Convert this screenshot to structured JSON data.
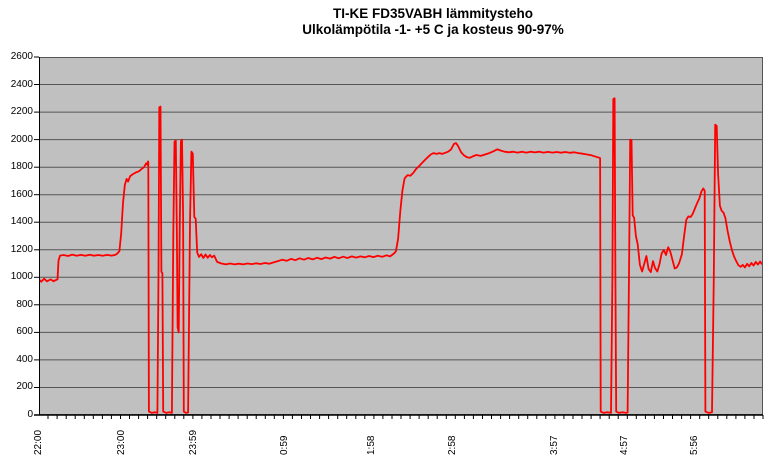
{
  "title": {
    "line1": "TI-KE FD35VABH lämmitysteho",
    "line2": "Ulkolämpötila -1- +5 C ja kosteus 90-97%"
  },
  "colors": {
    "series": "#ff0000",
    "plot_bg": "#c0c0c0",
    "gridline": "#555555",
    "axis": "#000000",
    "page_bg": "#ffffff",
    "text": "#000000"
  },
  "chart_data": {
    "type": "line",
    "title": "TI-KE FD35VABH lämmitysteho",
    "subtitle": "Ulkolämpötila -1- +5 C ja kosteus 90-97%",
    "grid": true,
    "legend_position": "none",
    "ylim": [
      0,
      2600
    ],
    "y_tick_step": 200,
    "y_ticks": [
      0,
      200,
      400,
      600,
      800,
      1000,
      1200,
      1400,
      1600,
      1800,
      2000,
      2200,
      2400,
      2600
    ],
    "x_tick_labels": [
      "22:00",
      "23:00",
      "23:59",
      "0:59",
      "1:58",
      "2:58",
      "3:57",
      "4:57",
      "5:56"
    ],
    "x_tick_positions_pct": [
      0.0,
      11.5,
      21.4,
      34.0,
      46.0,
      57.2,
      71.3,
      80.9,
      90.6
    ],
    "minor_tick_count": 80,
    "series": [
      {
        "color": "#ff0000",
        "points": [
          [
            0,
            985
          ],
          [
            0.3,
            968
          ],
          [
            0.7,
            990
          ],
          [
            1.1,
            970
          ],
          [
            1.6,
            985
          ],
          [
            2.0,
            972
          ],
          [
            2.4,
            982
          ],
          [
            2.55,
            985
          ],
          [
            2.7,
            1120
          ],
          [
            2.9,
            1158
          ],
          [
            3.4,
            1162
          ],
          [
            4.0,
            1155
          ],
          [
            4.6,
            1165
          ],
          [
            5.2,
            1157
          ],
          [
            5.8,
            1163
          ],
          [
            6.4,
            1156
          ],
          [
            7.0,
            1164
          ],
          [
            7.6,
            1157
          ],
          [
            8.2,
            1162
          ],
          [
            8.8,
            1156
          ],
          [
            9.4,
            1163
          ],
          [
            10.0,
            1158
          ],
          [
            10.5,
            1162
          ],
          [
            10.8,
            1172
          ],
          [
            11.1,
            1190
          ],
          [
            11.35,
            1320
          ],
          [
            11.6,
            1540
          ],
          [
            11.85,
            1670
          ],
          [
            12.1,
            1715
          ],
          [
            12.3,
            1695
          ],
          [
            12.6,
            1735
          ],
          [
            13.0,
            1750
          ],
          [
            13.4,
            1762
          ],
          [
            13.8,
            1770
          ],
          [
            14.2,
            1788
          ],
          [
            14.5,
            1800
          ],
          [
            14.8,
            1828
          ],
          [
            15.0,
            1818
          ],
          [
            15.05,
            1842
          ],
          [
            15.1,
            1835
          ],
          [
            15.18,
            25
          ],
          [
            15.6,
            15
          ],
          [
            16.0,
            20
          ],
          [
            16.35,
            15
          ],
          [
            16.5,
            1030
          ],
          [
            16.62,
            2235
          ],
          [
            16.78,
            2240
          ],
          [
            16.9,
            1040
          ],
          [
            17.05,
            1030
          ],
          [
            17.15,
            25
          ],
          [
            17.6,
            15
          ],
          [
            18.0,
            20
          ],
          [
            18.35,
            15
          ],
          [
            18.55,
            1310
          ],
          [
            18.72,
            1985
          ],
          [
            18.9,
            1995
          ],
          [
            19.05,
            1300
          ],
          [
            19.15,
            640
          ],
          [
            19.3,
            600
          ],
          [
            19.45,
            1400
          ],
          [
            19.6,
            1988
          ],
          [
            19.75,
            2000
          ],
          [
            19.9,
            1450
          ],
          [
            20.0,
            25
          ],
          [
            20.3,
            15
          ],
          [
            20.6,
            18
          ],
          [
            20.85,
            1400
          ],
          [
            21.05,
            1912
          ],
          [
            21.25,
            1898
          ],
          [
            21.45,
            1438
          ],
          [
            21.65,
            1425
          ],
          [
            21.85,
            1180
          ],
          [
            22.1,
            1148
          ],
          [
            22.4,
            1168
          ],
          [
            22.7,
            1140
          ],
          [
            23.0,
            1166
          ],
          [
            23.3,
            1142
          ],
          [
            23.6,
            1162
          ],
          [
            23.9,
            1145
          ],
          [
            24.2,
            1158
          ],
          [
            24.6,
            1112
          ],
          [
            25.2,
            1100
          ],
          [
            25.8,
            1094
          ],
          [
            26.4,
            1100
          ],
          [
            27.0,
            1094
          ],
          [
            27.6,
            1099
          ],
          [
            28.2,
            1094
          ],
          [
            28.8,
            1100
          ],
          [
            29.4,
            1096
          ],
          [
            30.0,
            1102
          ],
          [
            30.6,
            1097
          ],
          [
            31.2,
            1104
          ],
          [
            31.8,
            1099
          ],
          [
            32.4,
            1108
          ],
          [
            33.0,
            1118
          ],
          [
            33.6,
            1128
          ],
          [
            34.2,
            1120
          ],
          [
            34.8,
            1134
          ],
          [
            35.4,
            1124
          ],
          [
            36.0,
            1138
          ],
          [
            36.6,
            1128
          ],
          [
            37.2,
            1140
          ],
          [
            37.8,
            1130
          ],
          [
            38.4,
            1142
          ],
          [
            39.0,
            1132
          ],
          [
            39.6,
            1144
          ],
          [
            40.2,
            1136
          ],
          [
            40.8,
            1148
          ],
          [
            41.4,
            1138
          ],
          [
            42.0,
            1150
          ],
          [
            42.6,
            1140
          ],
          [
            43.2,
            1152
          ],
          [
            43.8,
            1143
          ],
          [
            44.4,
            1152
          ],
          [
            45.0,
            1145
          ],
          [
            45.6,
            1155
          ],
          [
            46.2,
            1147
          ],
          [
            46.8,
            1157
          ],
          [
            47.4,
            1149
          ],
          [
            48.0,
            1160
          ],
          [
            48.5,
            1152
          ],
          [
            49.0,
            1172
          ],
          [
            49.3,
            1188
          ],
          [
            49.6,
            1280
          ],
          [
            49.9,
            1480
          ],
          [
            50.2,
            1630
          ],
          [
            50.5,
            1718
          ],
          [
            50.9,
            1742
          ],
          [
            51.3,
            1738
          ],
          [
            51.7,
            1758
          ],
          [
            52.1,
            1788
          ],
          [
            52.5,
            1808
          ],
          [
            52.9,
            1830
          ],
          [
            53.3,
            1852
          ],
          [
            53.7,
            1872
          ],
          [
            54.1,
            1892
          ],
          [
            54.5,
            1902
          ],
          [
            54.9,
            1896
          ],
          [
            55.3,
            1902
          ],
          [
            55.7,
            1896
          ],
          [
            56.1,
            1904
          ],
          [
            56.5,
            1912
          ],
          [
            56.9,
            1928
          ],
          [
            57.3,
            1968
          ],
          [
            57.6,
            1975
          ],
          [
            57.9,
            1952
          ],
          [
            58.3,
            1908
          ],
          [
            58.7,
            1885
          ],
          [
            59.1,
            1872
          ],
          [
            59.5,
            1868
          ],
          [
            59.9,
            1878
          ],
          [
            60.4,
            1888
          ],
          [
            61.0,
            1882
          ],
          [
            61.6,
            1892
          ],
          [
            62.2,
            1902
          ],
          [
            62.8,
            1916
          ],
          [
            63.3,
            1930
          ],
          [
            63.8,
            1920
          ],
          [
            64.3,
            1912
          ],
          [
            64.9,
            1908
          ],
          [
            65.5,
            1912
          ],
          [
            66.1,
            1906
          ],
          [
            66.7,
            1912
          ],
          [
            67.3,
            1906
          ],
          [
            67.9,
            1912
          ],
          [
            68.5,
            1907
          ],
          [
            69.1,
            1912
          ],
          [
            69.7,
            1906
          ],
          [
            70.3,
            1911
          ],
          [
            70.9,
            1906
          ],
          [
            71.5,
            1910
          ],
          [
            72.1,
            1905
          ],
          [
            72.7,
            1910
          ],
          [
            73.3,
            1904
          ],
          [
            73.9,
            1908
          ],
          [
            74.5,
            1902
          ],
          [
            75.1,
            1898
          ],
          [
            75.7,
            1892
          ],
          [
            76.3,
            1886
          ],
          [
            76.9,
            1876
          ],
          [
            77.4,
            1868
          ],
          [
            77.5,
            1865
          ],
          [
            77.58,
            25
          ],
          [
            78.0,
            15
          ],
          [
            78.5,
            20
          ],
          [
            79.0,
            15
          ],
          [
            79.2,
            1000
          ],
          [
            79.32,
            2295
          ],
          [
            79.5,
            2300
          ],
          [
            79.62,
            1000
          ],
          [
            79.72,
            25
          ],
          [
            80.1,
            15
          ],
          [
            80.6,
            20
          ],
          [
            81.1,
            15
          ],
          [
            81.3,
            18
          ],
          [
            81.5,
            1100
          ],
          [
            81.66,
            2000
          ],
          [
            81.84,
            1995
          ],
          [
            82.0,
            1450
          ],
          [
            82.2,
            1432
          ],
          [
            82.45,
            1300
          ],
          [
            82.7,
            1240
          ],
          [
            83.0,
            1090
          ],
          [
            83.3,
            1042
          ],
          [
            83.6,
            1098
          ],
          [
            83.9,
            1155
          ],
          [
            84.2,
            1060
          ],
          [
            84.5,
            1038
          ],
          [
            84.8,
            1118
          ],
          [
            85.1,
            1066
          ],
          [
            85.4,
            1042
          ],
          [
            85.7,
            1096
          ],
          [
            86.0,
            1172
          ],
          [
            86.3,
            1198
          ],
          [
            86.6,
            1162
          ],
          [
            86.9,
            1218
          ],
          [
            87.2,
            1186
          ],
          [
            87.5,
            1126
          ],
          [
            87.8,
            1064
          ],
          [
            88.1,
            1072
          ],
          [
            88.4,
            1100
          ],
          [
            88.8,
            1168
          ],
          [
            89.1,
            1300
          ],
          [
            89.4,
            1418
          ],
          [
            89.7,
            1442
          ],
          [
            90.0,
            1438
          ],
          [
            90.3,
            1462
          ],
          [
            90.6,
            1500
          ],
          [
            90.9,
            1538
          ],
          [
            91.2,
            1572
          ],
          [
            91.5,
            1625
          ],
          [
            91.75,
            1645
          ],
          [
            91.95,
            1628
          ],
          [
            92.05,
            25
          ],
          [
            92.5,
            15
          ],
          [
            92.95,
            20
          ],
          [
            93.2,
            1000
          ],
          [
            93.4,
            2108
          ],
          [
            93.6,
            2100
          ],
          [
            93.8,
            1750
          ],
          [
            94.05,
            1520
          ],
          [
            94.3,
            1482
          ],
          [
            94.55,
            1470
          ],
          [
            94.8,
            1430
          ],
          [
            95.1,
            1340
          ],
          [
            95.4,
            1262
          ],
          [
            95.7,
            1198
          ],
          [
            96.0,
            1152
          ],
          [
            96.3,
            1118
          ],
          [
            96.6,
            1088
          ],
          [
            96.9,
            1076
          ],
          [
            97.2,
            1090
          ],
          [
            97.5,
            1072
          ],
          [
            97.8,
            1098
          ],
          [
            98.1,
            1080
          ],
          [
            98.4,
            1104
          ],
          [
            98.7,
            1086
          ],
          [
            99.0,
            1112
          ],
          [
            99.3,
            1092
          ],
          [
            99.6,
            1115
          ],
          [
            99.8,
            1098
          ],
          [
            100,
            1108
          ]
        ]
      }
    ]
  }
}
